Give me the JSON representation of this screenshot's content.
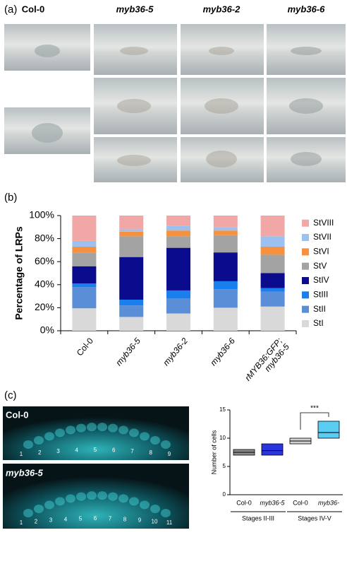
{
  "panel_a": {
    "label": "(a)",
    "columns": [
      "Col-0",
      "myb36-5",
      "myb36-2",
      "myb36-6"
    ]
  },
  "chart_data": [
    {
      "type": "bar",
      "stacked": true,
      "label": "(b)",
      "ylabel": "Percentage of LRPs",
      "categories": [
        "Col-0",
        "myb36-5",
        "myb36-2",
        "myb36-6",
        "rMYB36:GFP; myb36-5"
      ],
      "series": [
        {
          "name": "StI",
          "color": "#d9d9d9",
          "values": [
            19.5,
            12,
            15,
            20,
            21
          ]
        },
        {
          "name": "StII",
          "color": "#5a8ed6",
          "values": [
            18.5,
            10,
            13,
            16,
            13
          ]
        },
        {
          "name": "StIII",
          "color": "#1a7fee",
          "values": [
            3,
            5,
            7,
            7,
            3
          ]
        },
        {
          "name": "StIV",
          "color": "#0b0b8e",
          "values": [
            15,
            37,
            37,
            25,
            13
          ]
        },
        {
          "name": "StV",
          "color": "#a3a3a3",
          "values": [
            12,
            18,
            10,
            15,
            16
          ]
        },
        {
          "name": "StVI",
          "color": "#f7913f",
          "values": [
            5,
            4,
            5,
            4,
            7
          ]
        },
        {
          "name": "StVII",
          "color": "#9dc1ee",
          "values": [
            5,
            2,
            4,
            3,
            9
          ]
        },
        {
          "name": "StVIII",
          "color": "#f2a7a7",
          "values": [
            22,
            12,
            9,
            10,
            18
          ]
        }
      ],
      "ylim": [
        0,
        100
      ],
      "yticks": [
        {
          "value": 0,
          "label": "0%"
        },
        {
          "value": 20,
          "label": "20%"
        },
        {
          "value": 40,
          "label": "40%"
        },
        {
          "value": 60,
          "label": "60%"
        },
        {
          "value": 80,
          "label": "80%"
        },
        {
          "value": 100,
          "label": "100%"
        }
      ],
      "legend": "right"
    },
    {
      "type": "box",
      "label": "(c)",
      "ylabel": "Number of cells",
      "categories": [
        "Col-0",
        "myb36-5",
        "Col-0",
        "myb36-"
      ],
      "group_labels": [
        "Stages II-III",
        "Stages IV-V"
      ],
      "boxes": [
        {
          "q1": 7,
          "median": 7.5,
          "q3": 8,
          "color": "#8a8a8a"
        },
        {
          "q1": 7,
          "median": 7.8,
          "q3": 9,
          "color": "#2a35e0"
        },
        {
          "q1": 9,
          "median": 9.5,
          "q3": 10,
          "color": "#d0d0d0"
        },
        {
          "q1": 10,
          "median": 11,
          "q3": 13,
          "color": "#5ccdf2"
        }
      ],
      "ylim": [
        0,
        15
      ],
      "yticks": [
        0,
        5,
        10,
        15
      ],
      "annotation": "***"
    }
  ],
  "panel_c_images": [
    {
      "label": "Col-0",
      "cell_numbers": [
        "1",
        "2",
        "3",
        "4",
        "5",
        "6",
        "7",
        "8",
        "9"
      ]
    },
    {
      "label": "myb36-5",
      "cell_numbers": [
        "1",
        "2",
        "3",
        "4",
        "5",
        "6",
        "7",
        "8",
        "9",
        "10",
        "11"
      ]
    }
  ]
}
